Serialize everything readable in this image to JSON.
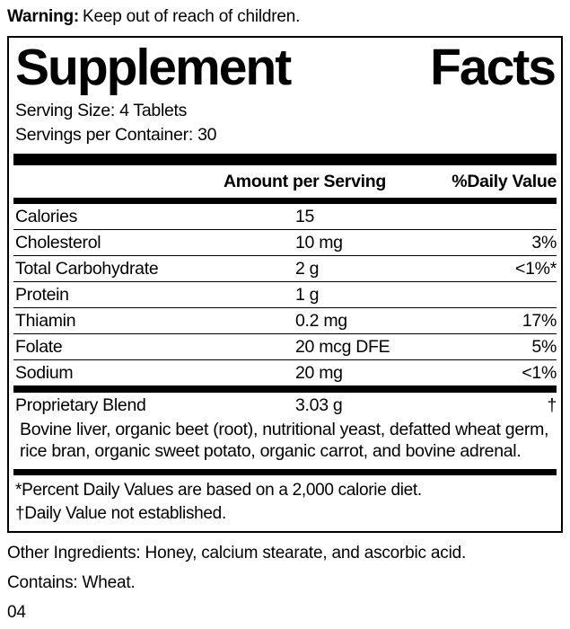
{
  "warning": {
    "label": "Warning:",
    "text": "Keep out of reach of children."
  },
  "panel": {
    "title_word1": "Supplement",
    "title_word2": "Facts",
    "serving_size": "Serving Size: 4 Tablets",
    "servings_per_container": "Servings per Container: 30",
    "header": {
      "amount": "Amount per Serving",
      "daily_value": "%Daily Value"
    },
    "rows": [
      {
        "label": "Calories",
        "amount": "15",
        "dv": ""
      },
      {
        "label": "Cholesterol",
        "amount": "10 mg",
        "dv": "3%"
      },
      {
        "label": "Total Carbohydrate",
        "amount": "2 g",
        "dv": "<1%*"
      },
      {
        "label": "Protein",
        "amount": "1 g",
        "dv": ""
      },
      {
        "label": "Thiamin",
        "amount": "0.2 mg",
        "dv": "17%"
      },
      {
        "label": "Folate",
        "amount": "20 mcg DFE",
        "dv": "5%"
      },
      {
        "label": "Sodium",
        "amount": "20 mg",
        "dv": "<1%"
      }
    ],
    "blend": {
      "label": "Proprietary Blend",
      "amount": "3.03 g",
      "dv": "†",
      "description": "Bovine liver, organic beet (root), nutritional yeast, defatted wheat germ, rice bran, organic sweet potato, organic carrot, and bovine adrenal."
    },
    "footnotes": [
      "*Percent Daily Values are based on a 2,000 calorie diet.",
      "†Daily Value not established."
    ]
  },
  "other_ingredients": "Other Ingredients: Honey, calcium stearate, and ascorbic acid.",
  "contains": "Contains: Wheat.",
  "code": "04"
}
